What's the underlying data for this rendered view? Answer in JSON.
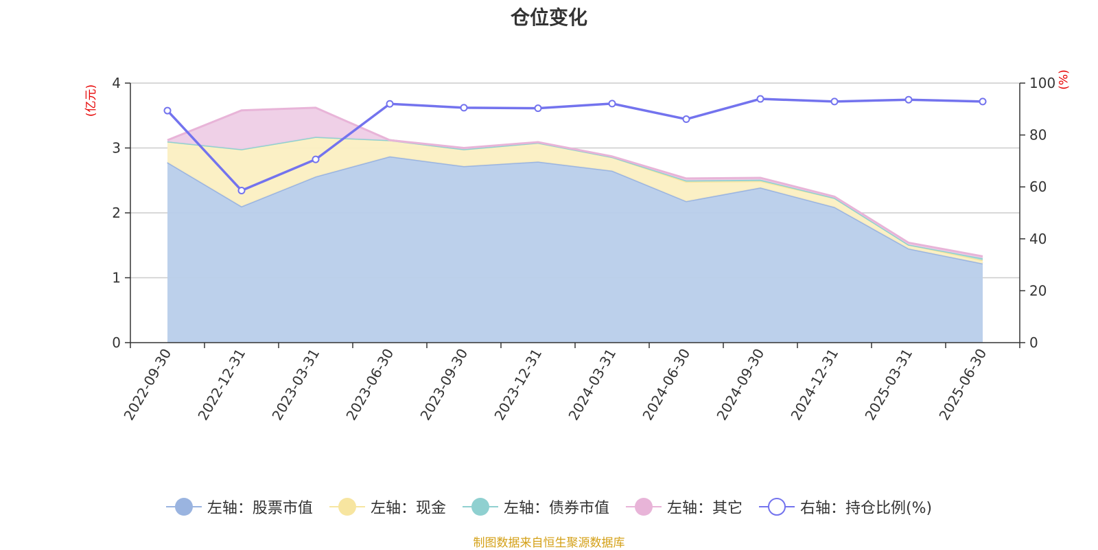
{
  "title": "仓位变化",
  "left_unit": "(亿元)",
  "right_unit": "(%)",
  "footer": "制图数据来自恒生聚源数据库",
  "chart_data": {
    "type": "area",
    "title": "仓位变化",
    "categories": [
      "2022-09-30",
      "2022-12-31",
      "2023-03-31",
      "2023-06-30",
      "2023-09-30",
      "2023-12-31",
      "2024-03-31",
      "2024-06-30",
      "2024-09-30",
      "2024-12-31",
      "2025-03-31",
      "2025-06-30"
    ],
    "y_left": {
      "label": "(亿元)",
      "min": 0,
      "max": 4,
      "ticks": [
        "0",
        "1",
        "2",
        "3",
        "4"
      ]
    },
    "y_right": {
      "label": "(%)",
      "min": 0,
      "max": 100,
      "ticks": [
        "0",
        "20",
        "40",
        "60",
        "80",
        "100"
      ]
    },
    "stacked": true,
    "series": [
      {
        "name": "左轴：股票市值",
        "axis": "left",
        "kind": "area",
        "color": "#9ab4e0",
        "fill": "#b8cdea",
        "values": [
          2.78,
          2.1,
          2.56,
          2.87,
          2.72,
          2.79,
          2.65,
          2.18,
          2.39,
          2.09,
          1.45,
          1.22
        ]
      },
      {
        "name": "左轴：现金",
        "axis": "left",
        "kind": "area",
        "color": "#f7e5a0",
        "fill": "#fbefc2",
        "values": [
          0.32,
          0.88,
          0.61,
          0.25,
          0.26,
          0.29,
          0.21,
          0.3,
          0.1,
          0.14,
          0.06,
          0.05
        ]
      },
      {
        "name": "左轴：债券市值",
        "axis": "left",
        "kind": "area",
        "color": "#8fd0d0",
        "fill": "#a9dcdc",
        "values": [
          0,
          0,
          0,
          0,
          0,
          0,
          0,
          0.02,
          0.02,
          0,
          0,
          0.03
        ]
      },
      {
        "name": "左轴：其它",
        "axis": "left",
        "kind": "area",
        "color": "#e8b4d8",
        "fill": "#eecde6",
        "values": [
          0.02,
          0.6,
          0.45,
          0.0,
          0.02,
          0.01,
          0.01,
          0.03,
          0.03,
          0.02,
          0.03,
          0.03
        ]
      },
      {
        "name": "右轴：持仓比例(%)",
        "axis": "right",
        "kind": "line",
        "color": "#7373ee",
        "values": [
          89.4,
          58.6,
          70.6,
          92.0,
          90.5,
          90.3,
          92.1,
          86.1,
          93.9,
          92.9,
          93.6,
          92.9
        ]
      }
    ],
    "grid": true,
    "legend_position": "bottom"
  }
}
